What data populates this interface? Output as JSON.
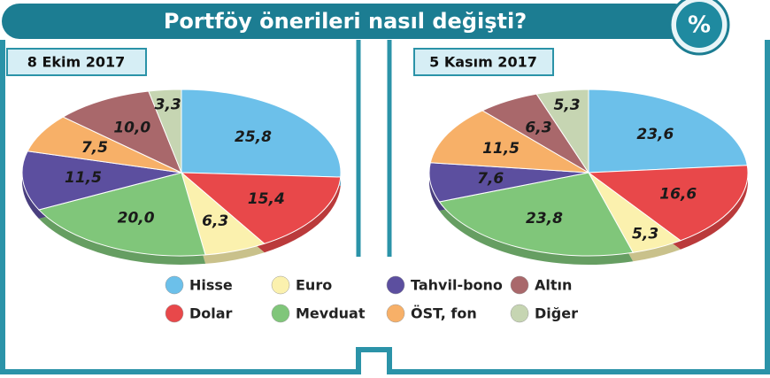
{
  "header": {
    "title": "Portföy önerileri nasıl değişti?",
    "badge": "%"
  },
  "chart_data": [
    {
      "type": "pie",
      "title": "8 Ekim 2017",
      "categories": [
        "Hisse",
        "Dolar",
        "Euro",
        "Mevduat",
        "Tahvil-bono",
        "ÖST, fon",
        "Altın",
        "Diğer"
      ],
      "values": [
        25.8,
        15.4,
        6.3,
        20.0,
        11.5,
        7.5,
        10.0,
        3.3
      ],
      "value_labels": [
        "25,8",
        "15,4",
        "6,3",
        "20,0",
        "11,5",
        "7,5",
        "10,0",
        "3,3"
      ],
      "colors": [
        "#6cc0ea",
        "#e8484a",
        "#fbf1ae",
        "#80c67a",
        "#5c4f9f",
        "#f7b068",
        "#a9686b",
        "#c6d5b2"
      ]
    },
    {
      "type": "pie",
      "title": "5 Kasım 2017",
      "categories": [
        "Hisse",
        "Dolar",
        "Euro",
        "Mevduat",
        "Tahvil-bono",
        "ÖST, fon",
        "Altın",
        "Diğer"
      ],
      "values": [
        23.6,
        16.6,
        5.3,
        23.8,
        7.6,
        11.5,
        6.3,
        5.3
      ],
      "value_labels": [
        "23,6",
        "16,6",
        "5,3",
        "23,8",
        "7,6",
        "11,5",
        "6,3",
        "5,3"
      ],
      "colors": [
        "#6cc0ea",
        "#e8484a",
        "#fbf1ae",
        "#80c67a",
        "#5c4f9f",
        "#f7b068",
        "#a9686b",
        "#c6d5b2"
      ]
    }
  ]
}
